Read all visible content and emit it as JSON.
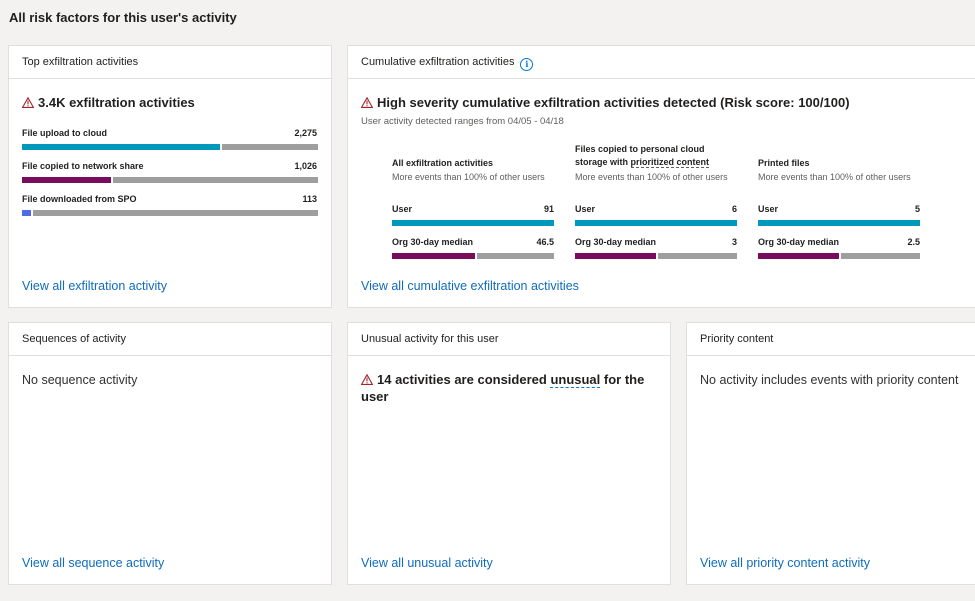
{
  "page": {
    "title": "All risk factors for this user's activity"
  },
  "colors": {
    "teal": "#0099bc",
    "purple": "#7a0c5e",
    "blue": "#4f6bed",
    "gray": "#9e9e9e",
    "link": "#0f6cbd",
    "warning": "#a4262c"
  },
  "icons": {
    "warning": "warning-triangle-icon",
    "info": "info-icon"
  },
  "top_exfil": {
    "header": "Top exfiltration activities",
    "headline": "3.4K exfiltration activities",
    "rows": [
      {
        "label": "File upload to cloud",
        "value": "2,275",
        "fraction": 0.67,
        "color": "#0099bc"
      },
      {
        "label": "File copied to network share",
        "value": "1,026",
        "fraction": 0.3,
        "color": "#7a0c5e"
      },
      {
        "label": "File downloaded from SPO",
        "value": "113",
        "fraction": 0.03,
        "color": "#4f6bed"
      }
    ],
    "link": "View all exfiltration activity"
  },
  "cumulative": {
    "header": "Cumulative exfiltration activities",
    "headline": "High severity cumulative exfiltration activities detected (Risk score: 100/100)",
    "subtitle": "User activity detected ranges from 04/05 - 04/18",
    "columns": [
      {
        "title_lines": [
          "All exfiltration activities"
        ],
        "desc": "More events than 100% of other users",
        "user_label": "User",
        "user_value": "91",
        "user_fraction": 1.0,
        "median_label": "Org 30-day median",
        "median_value": "46.5",
        "median_fraction": 0.51
      },
      {
        "title_lines": [
          "Files copied to personal cloud",
          "storage with "
        ],
        "title_emphasis": "prioritized content",
        "desc": "More events than 100% of other users",
        "user_label": "User",
        "user_value": "6",
        "user_fraction": 1.0,
        "median_label": "Org 30-day median",
        "median_value": "3",
        "median_fraction": 0.5
      },
      {
        "title_lines": [
          "Printed files"
        ],
        "desc": "More events than 100% of other users",
        "user_label": "User",
        "user_value": "5",
        "user_fraction": 1.0,
        "median_label": "Org 30-day median",
        "median_value": "2.5",
        "median_fraction": 0.5
      }
    ],
    "link": "View all cumulative exfiltration activities"
  },
  "sequences": {
    "header": "Sequences of activity",
    "empty": "No sequence activity",
    "link": "View all sequence activity"
  },
  "unusual": {
    "header": "Unusual activity for this user",
    "headline_pre": "14 activities are considered ",
    "headline_emphasis": "unusual",
    "headline_post": " for the",
    "headline_line2": "user",
    "link": "View all unusual activity"
  },
  "priority": {
    "header": "Priority content",
    "empty": "No activity includes events with priority content",
    "link": "View all priority content activity"
  }
}
